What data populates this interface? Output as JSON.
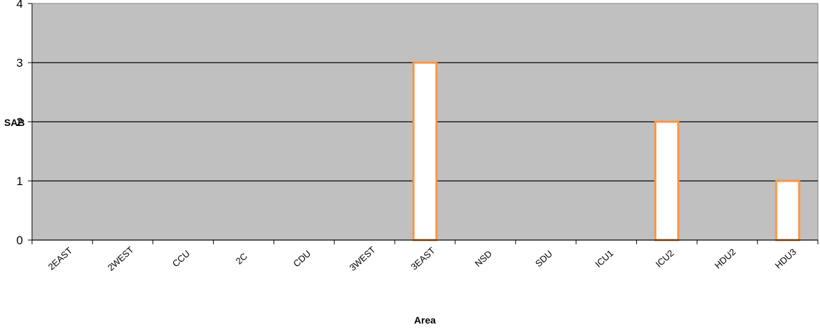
{
  "chart_data": {
    "type": "bar",
    "categories": [
      "2EAST",
      "2WEST",
      "CCU",
      "2C",
      "CDU",
      "3WEST",
      "3EAST",
      "NSD",
      "SDU",
      "ICU1",
      "ICU2",
      "HDU2",
      "HDU3"
    ],
    "values": [
      0,
      0,
      0,
      0,
      0,
      0,
      3,
      0,
      0,
      0,
      2,
      0,
      1
    ],
    "xlabel": "Area",
    "ylabel": "SAB",
    "ylim": [
      0,
      4
    ],
    "yticks": [
      "0",
      "1",
      "2",
      "3",
      "4"
    ],
    "grid": true,
    "colors": {
      "plot_background": "#c0c0c0",
      "bar_fill": "#ffffff",
      "bar_edge": "#f79646",
      "gridline": "#000000"
    }
  }
}
